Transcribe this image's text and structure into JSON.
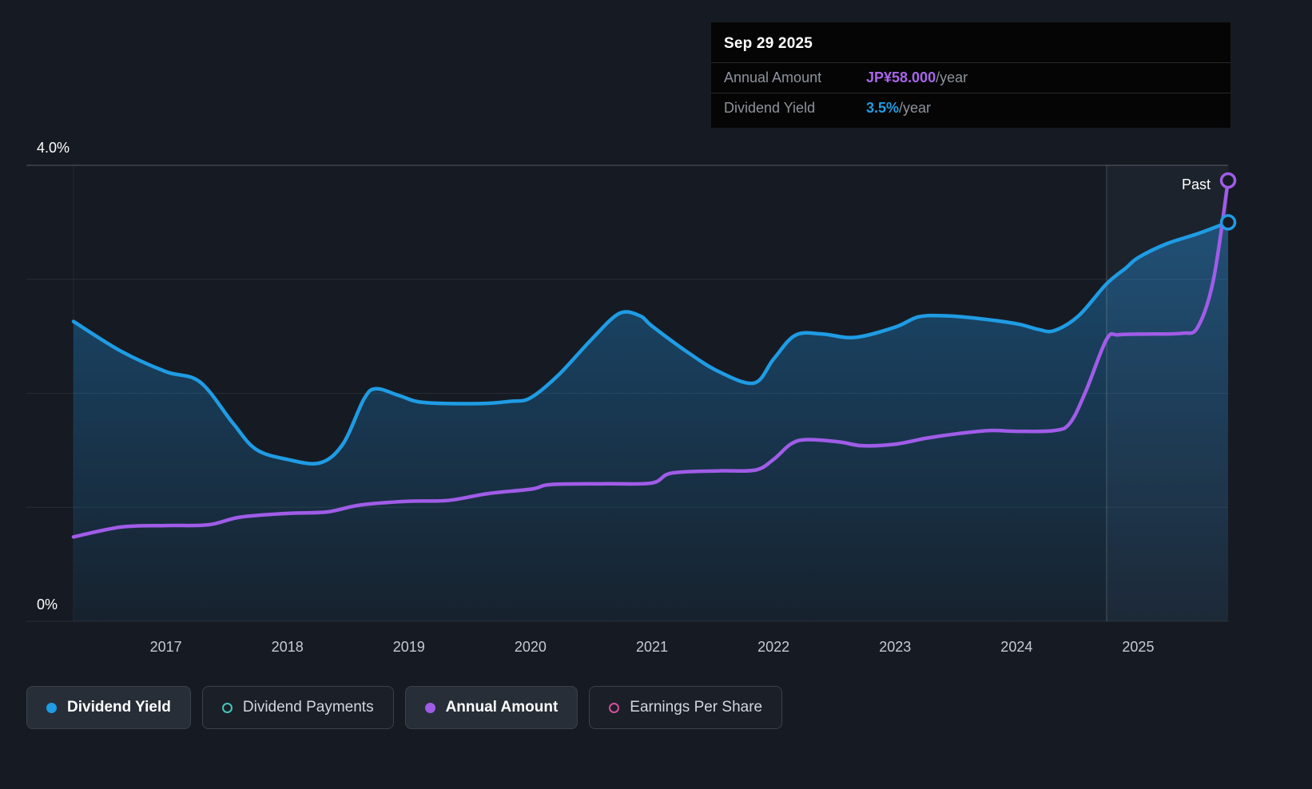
{
  "tooltip": {
    "date": "Sep 29 2025",
    "rows": [
      {
        "label": "Annual Amount",
        "value": "JP¥58.000",
        "suffix": "/year",
        "value_color": "#a966ea"
      },
      {
        "label": "Dividend Yield",
        "value": "3.5%",
        "suffix": "/year",
        "value_color": "#1f9ce4"
      }
    ]
  },
  "axis": {
    "y_top_label": "4.0%",
    "y_bottom_label": "0%",
    "x_ticks": [
      "2017",
      "2018",
      "2019",
      "2020",
      "2021",
      "2022",
      "2023",
      "2024",
      "2025"
    ]
  },
  "past_label": "Past",
  "legend": [
    {
      "label": "Dividend Yield",
      "color": "#1f9ce4",
      "style": "filled",
      "active": true
    },
    {
      "label": "Dividend Payments",
      "color": "#45c8b8",
      "style": "ring",
      "active": false
    },
    {
      "label": "Annual Amount",
      "color": "#a05ce8",
      "style": "filled",
      "active": true
    },
    {
      "label": "Earnings Per Share",
      "color": "#d8509c",
      "style": "ring",
      "active": false
    }
  ],
  "chart_data": {
    "type": "line",
    "title": "Dividend yield and annual dividend amount history",
    "x_range": [
      2016.24,
      2025.74
    ],
    "past_boundary_x": 2024.74,
    "grid": "horizontal",
    "legend_position": "bottom",
    "series": [
      {
        "name": "Dividend Yield",
        "unit": "%",
        "ylim": [
          0,
          4
        ],
        "color": "#1f9ce4",
        "area": true,
        "points": [
          [
            2016.24,
            2.63
          ],
          [
            2016.63,
            2.37
          ],
          [
            2017.0,
            2.19
          ],
          [
            2017.28,
            2.1
          ],
          [
            2017.55,
            1.74
          ],
          [
            2017.74,
            1.51
          ],
          [
            2018.0,
            1.42
          ],
          [
            2018.27,
            1.39
          ],
          [
            2018.46,
            1.56
          ],
          [
            2018.63,
            1.95
          ],
          [
            2018.73,
            2.04
          ],
          [
            2018.92,
            1.98
          ],
          [
            2019.12,
            1.92
          ],
          [
            2019.58,
            1.91
          ],
          [
            2019.84,
            1.93
          ],
          [
            2020.0,
            1.96
          ],
          [
            2020.23,
            2.16
          ],
          [
            2020.5,
            2.47
          ],
          [
            2020.73,
            2.7
          ],
          [
            2020.9,
            2.68
          ],
          [
            2021.0,
            2.59
          ],
          [
            2021.28,
            2.37
          ],
          [
            2021.55,
            2.19
          ],
          [
            2021.84,
            2.09
          ],
          [
            2022.0,
            2.3
          ],
          [
            2022.18,
            2.51
          ],
          [
            2022.4,
            2.52
          ],
          [
            2022.67,
            2.49
          ],
          [
            2023.0,
            2.58
          ],
          [
            2023.19,
            2.67
          ],
          [
            2023.39,
            2.68
          ],
          [
            2023.65,
            2.66
          ],
          [
            2024.0,
            2.61
          ],
          [
            2024.18,
            2.56
          ],
          [
            2024.31,
            2.55
          ],
          [
            2024.51,
            2.68
          ],
          [
            2024.74,
            2.96
          ],
          [
            2024.9,
            3.1
          ],
          [
            2025.0,
            3.19
          ],
          [
            2025.23,
            3.31
          ],
          [
            2025.49,
            3.4
          ],
          [
            2025.74,
            3.5
          ]
        ]
      },
      {
        "name": "Annual Amount",
        "unit": "JP¥",
        "ylim": [
          0,
          60
        ],
        "color": "#a05ce8",
        "area": false,
        "points": [
          [
            2016.24,
            11.1
          ],
          [
            2016.63,
            12.4
          ],
          [
            2017.0,
            12.6
          ],
          [
            2017.35,
            12.7
          ],
          [
            2017.61,
            13.7
          ],
          [
            2018.0,
            14.2
          ],
          [
            2018.33,
            14.4
          ],
          [
            2018.6,
            15.3
          ],
          [
            2019.0,
            15.8
          ],
          [
            2019.32,
            15.9
          ],
          [
            2019.65,
            16.8
          ],
          [
            2020.01,
            17.4
          ],
          [
            2020.17,
            18.0
          ],
          [
            2020.63,
            18.1
          ],
          [
            2021.0,
            18.2
          ],
          [
            2021.16,
            19.5
          ],
          [
            2021.55,
            19.8
          ],
          [
            2021.85,
            19.9
          ],
          [
            2022.0,
            21.3
          ],
          [
            2022.14,
            23.3
          ],
          [
            2022.27,
            23.9
          ],
          [
            2022.54,
            23.6
          ],
          [
            2022.73,
            23.1
          ],
          [
            2023.0,
            23.3
          ],
          [
            2023.26,
            24.1
          ],
          [
            2023.52,
            24.7
          ],
          [
            2023.78,
            25.1
          ],
          [
            2024.0,
            25.0
          ],
          [
            2024.31,
            25.1
          ],
          [
            2024.44,
            26.1
          ],
          [
            2024.57,
            30.3
          ],
          [
            2024.74,
            37.1
          ],
          [
            2024.84,
            37.7
          ],
          [
            2025.1,
            37.8
          ],
          [
            2025.36,
            37.9
          ],
          [
            2025.49,
            38.7
          ],
          [
            2025.62,
            45.0
          ],
          [
            2025.74,
            58.0
          ]
        ]
      }
    ]
  }
}
